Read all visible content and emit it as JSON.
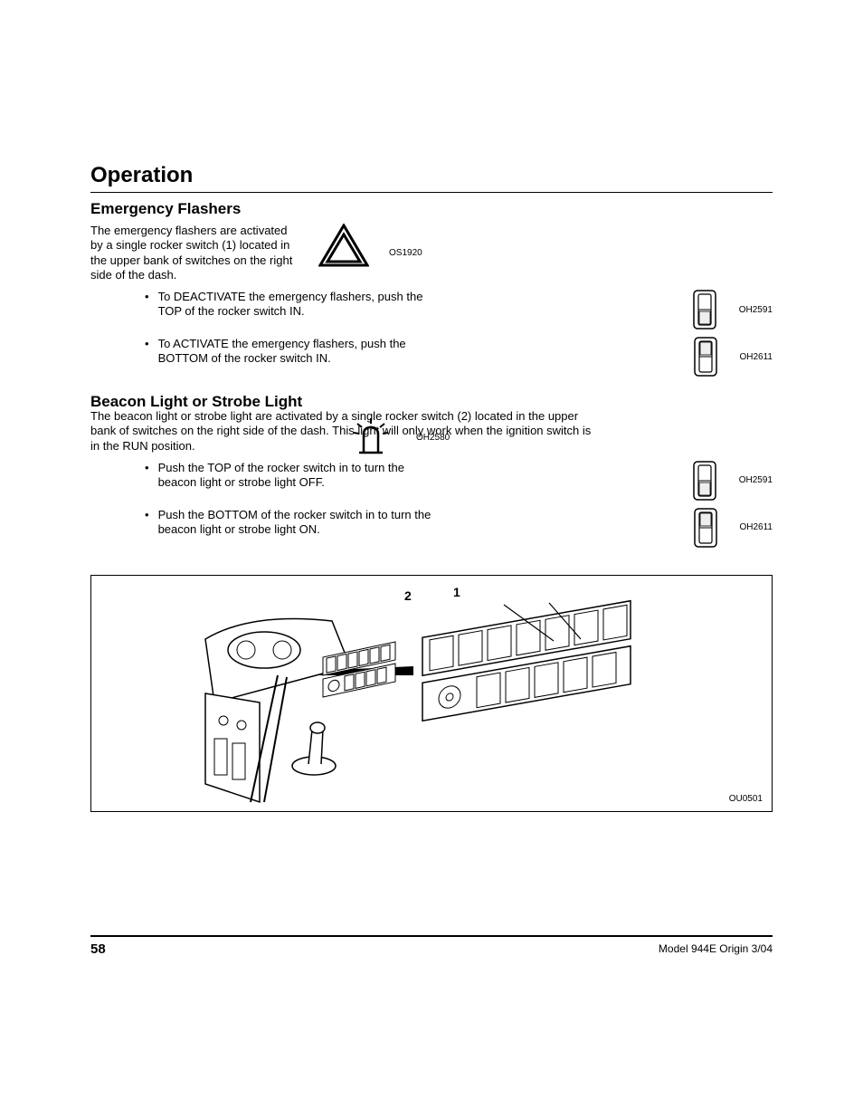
{
  "page": {
    "section_title": "Operation",
    "page_number": "58",
    "footer_right": "Model  944E    Origin  3/04"
  },
  "emergency": {
    "heading": "Emergency Flashers",
    "intro": "The emergency flashers are activated by a single rocker switch (1) located in the upper bank of switches on the right side of the dash.",
    "icon_code": "OS1920",
    "bullets": [
      {
        "text": "To DEACTIVATE the emergency flashers, push the TOP of the rocker switch IN.",
        "switch_code": "OH2591",
        "switch_state": "top"
      },
      {
        "text": "To ACTIVATE the emergency flashers, push the BOTTOM of the rocker switch IN.",
        "switch_code": "OH2611",
        "switch_state": "bottom"
      }
    ]
  },
  "beacon": {
    "heading": "Beacon Light or Strobe Light",
    "intro": "The beacon light or strobe light are activated by a single rocker switch (2) located in the upper bank of switches on the right side of the dash. This light will only work when the ignition switch is in the RUN position.",
    "icon_code": "OH2580",
    "bullets": [
      {
        "text": "Push the TOP of the rocker switch in to turn the beacon light or strobe light OFF.",
        "switch_code": "OH2591",
        "switch_state": "top"
      },
      {
        "text": "Push the BOTTOM of the rocker switch in to turn the beacon light or strobe light ON.",
        "switch_code": "OH2611",
        "switch_state": "bottom"
      }
    ]
  },
  "figure": {
    "code": "OU0501",
    "callouts": {
      "one": "1",
      "two": "2"
    }
  },
  "style": {
    "font_family": "Arial, Helvetica, sans-serif",
    "heading_fontsize_pt": 17,
    "section_fontsize_pt": 24,
    "body_fontsize_pt": 13,
    "code_fontsize_pt": 10,
    "text_color": "#000000",
    "background_color": "#ffffff",
    "rule_color": "#000000"
  }
}
